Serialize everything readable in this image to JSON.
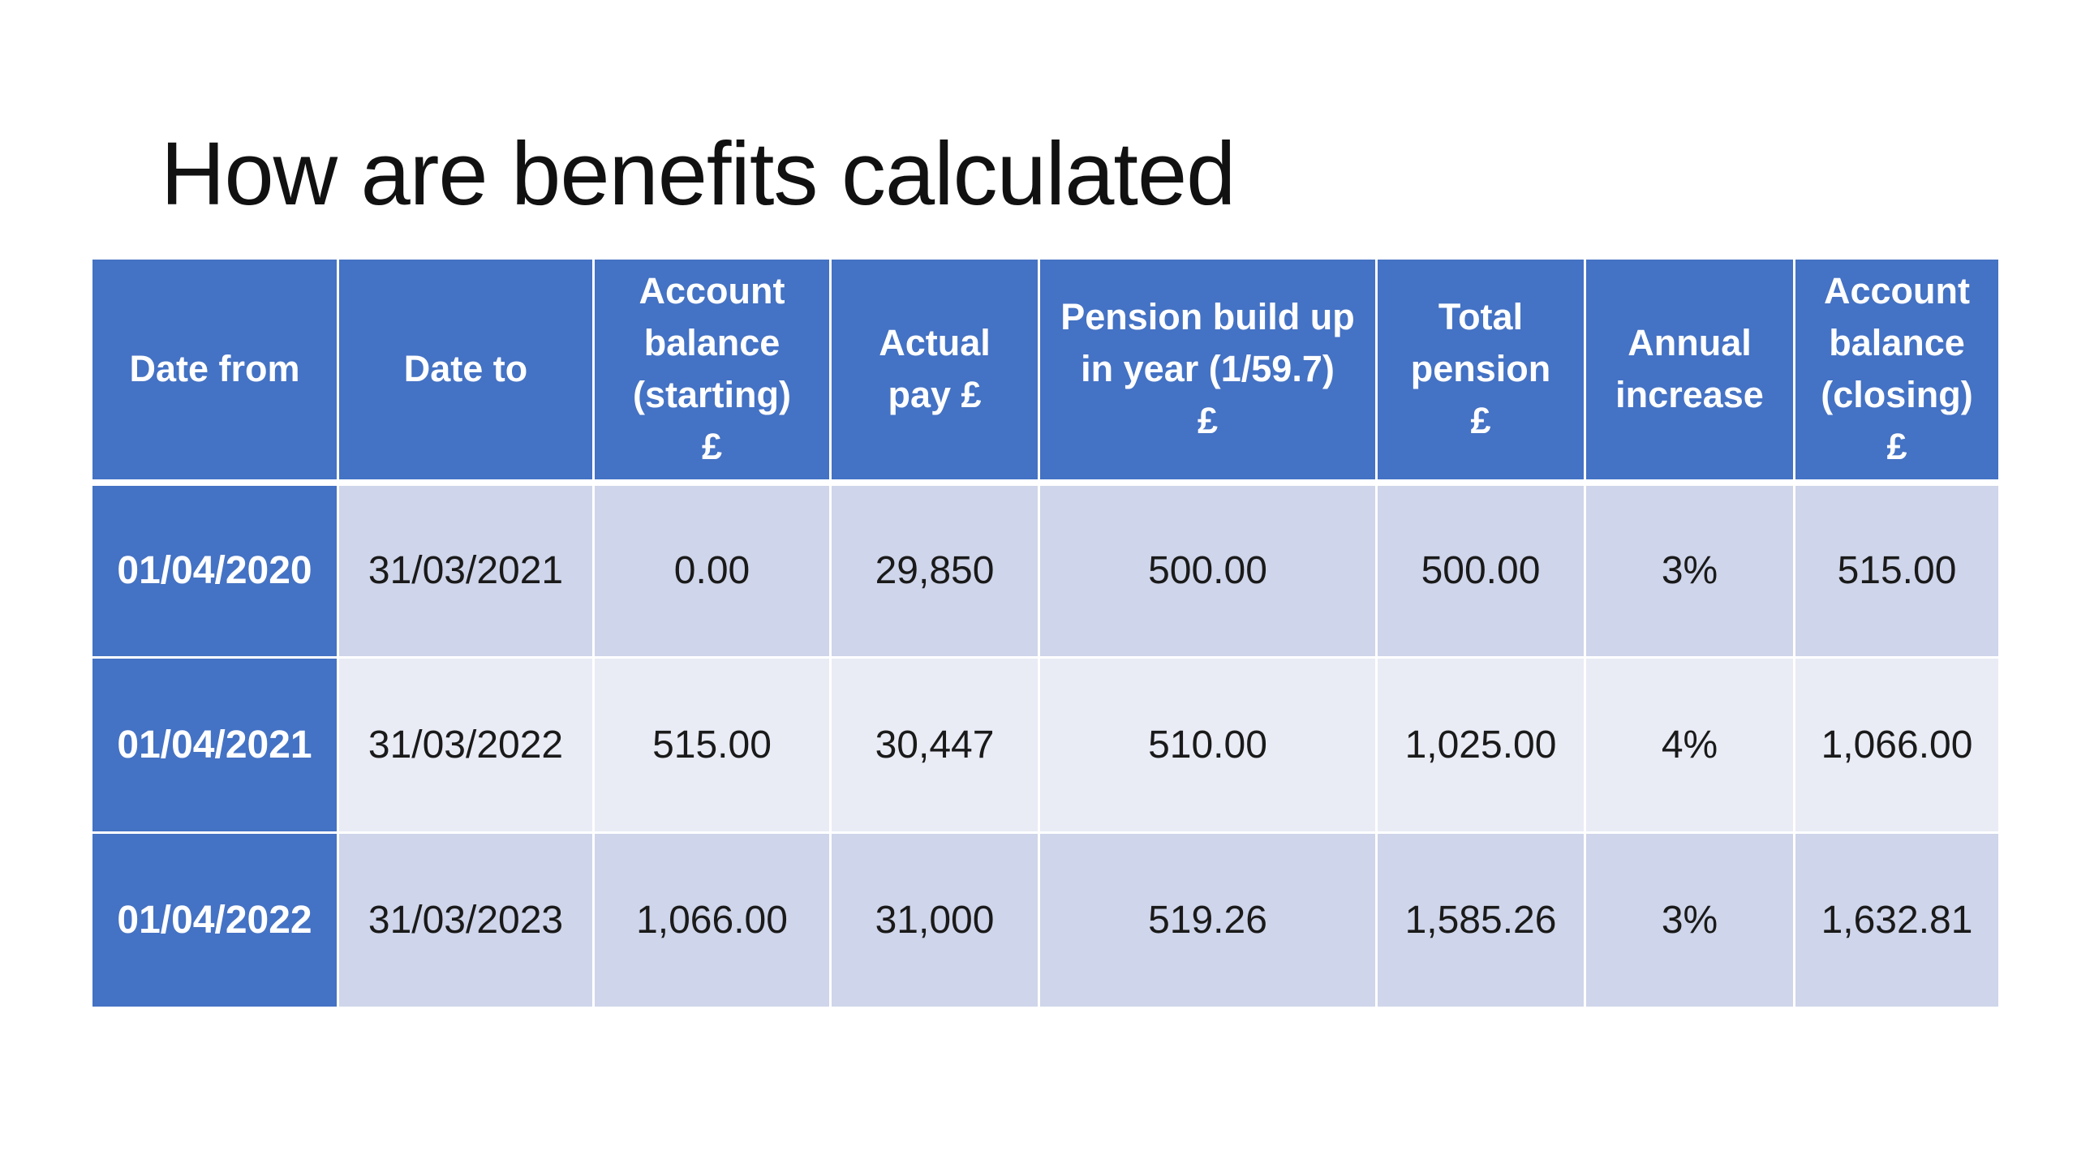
{
  "slide": {
    "title": "How are benefits calculated"
  },
  "table": {
    "headers": [
      {
        "lines": [
          "Date from"
        ]
      },
      {
        "lines": [
          "Date to"
        ]
      },
      {
        "lines": [
          "Account",
          "balance",
          "(starting)",
          "£"
        ]
      },
      {
        "lines": [
          "Actual",
          "pay £"
        ]
      },
      {
        "lines": [
          "Pension build up",
          "in year (1/59.7)",
          "£"
        ]
      },
      {
        "lines": [
          "Total",
          "pension",
          "£"
        ]
      },
      {
        "lines": [
          "Annual",
          "increase"
        ]
      },
      {
        "lines": [
          "Account",
          "balance",
          "(closing)",
          "£"
        ]
      }
    ],
    "rows": [
      {
        "date_from": "01/04/2020",
        "date_to": "31/03/2021",
        "account_balance_starting": "0.00",
        "actual_pay": "29,850",
        "pension_build_up": "500.00",
        "total_pension": "500.00",
        "annual_increase": "3%",
        "account_balance_closing": "515.00"
      },
      {
        "date_from": "01/04/2021",
        "date_to": "31/03/2022",
        "account_balance_starting": "515.00",
        "actual_pay": "30,447",
        "pension_build_up": "510.00",
        "total_pension": "1,025.00",
        "annual_increase": "4%",
        "account_balance_closing": "1,066.00"
      },
      {
        "date_from": "01/04/2022",
        "date_to": "31/03/2023",
        "account_balance_starting": "1,066.00",
        "actual_pay": "31,000",
        "pension_build_up": "519.26",
        "total_pension": "1,585.26",
        "annual_increase": "3%",
        "account_balance_closing": "1,632.81"
      }
    ]
  },
  "colors": {
    "header_fill": "#4472c4",
    "band_dark": "#cfd5ea",
    "band_light": "#e9ebf5",
    "header_text": "#ffffff",
    "body_text": "#1a1a1a"
  }
}
